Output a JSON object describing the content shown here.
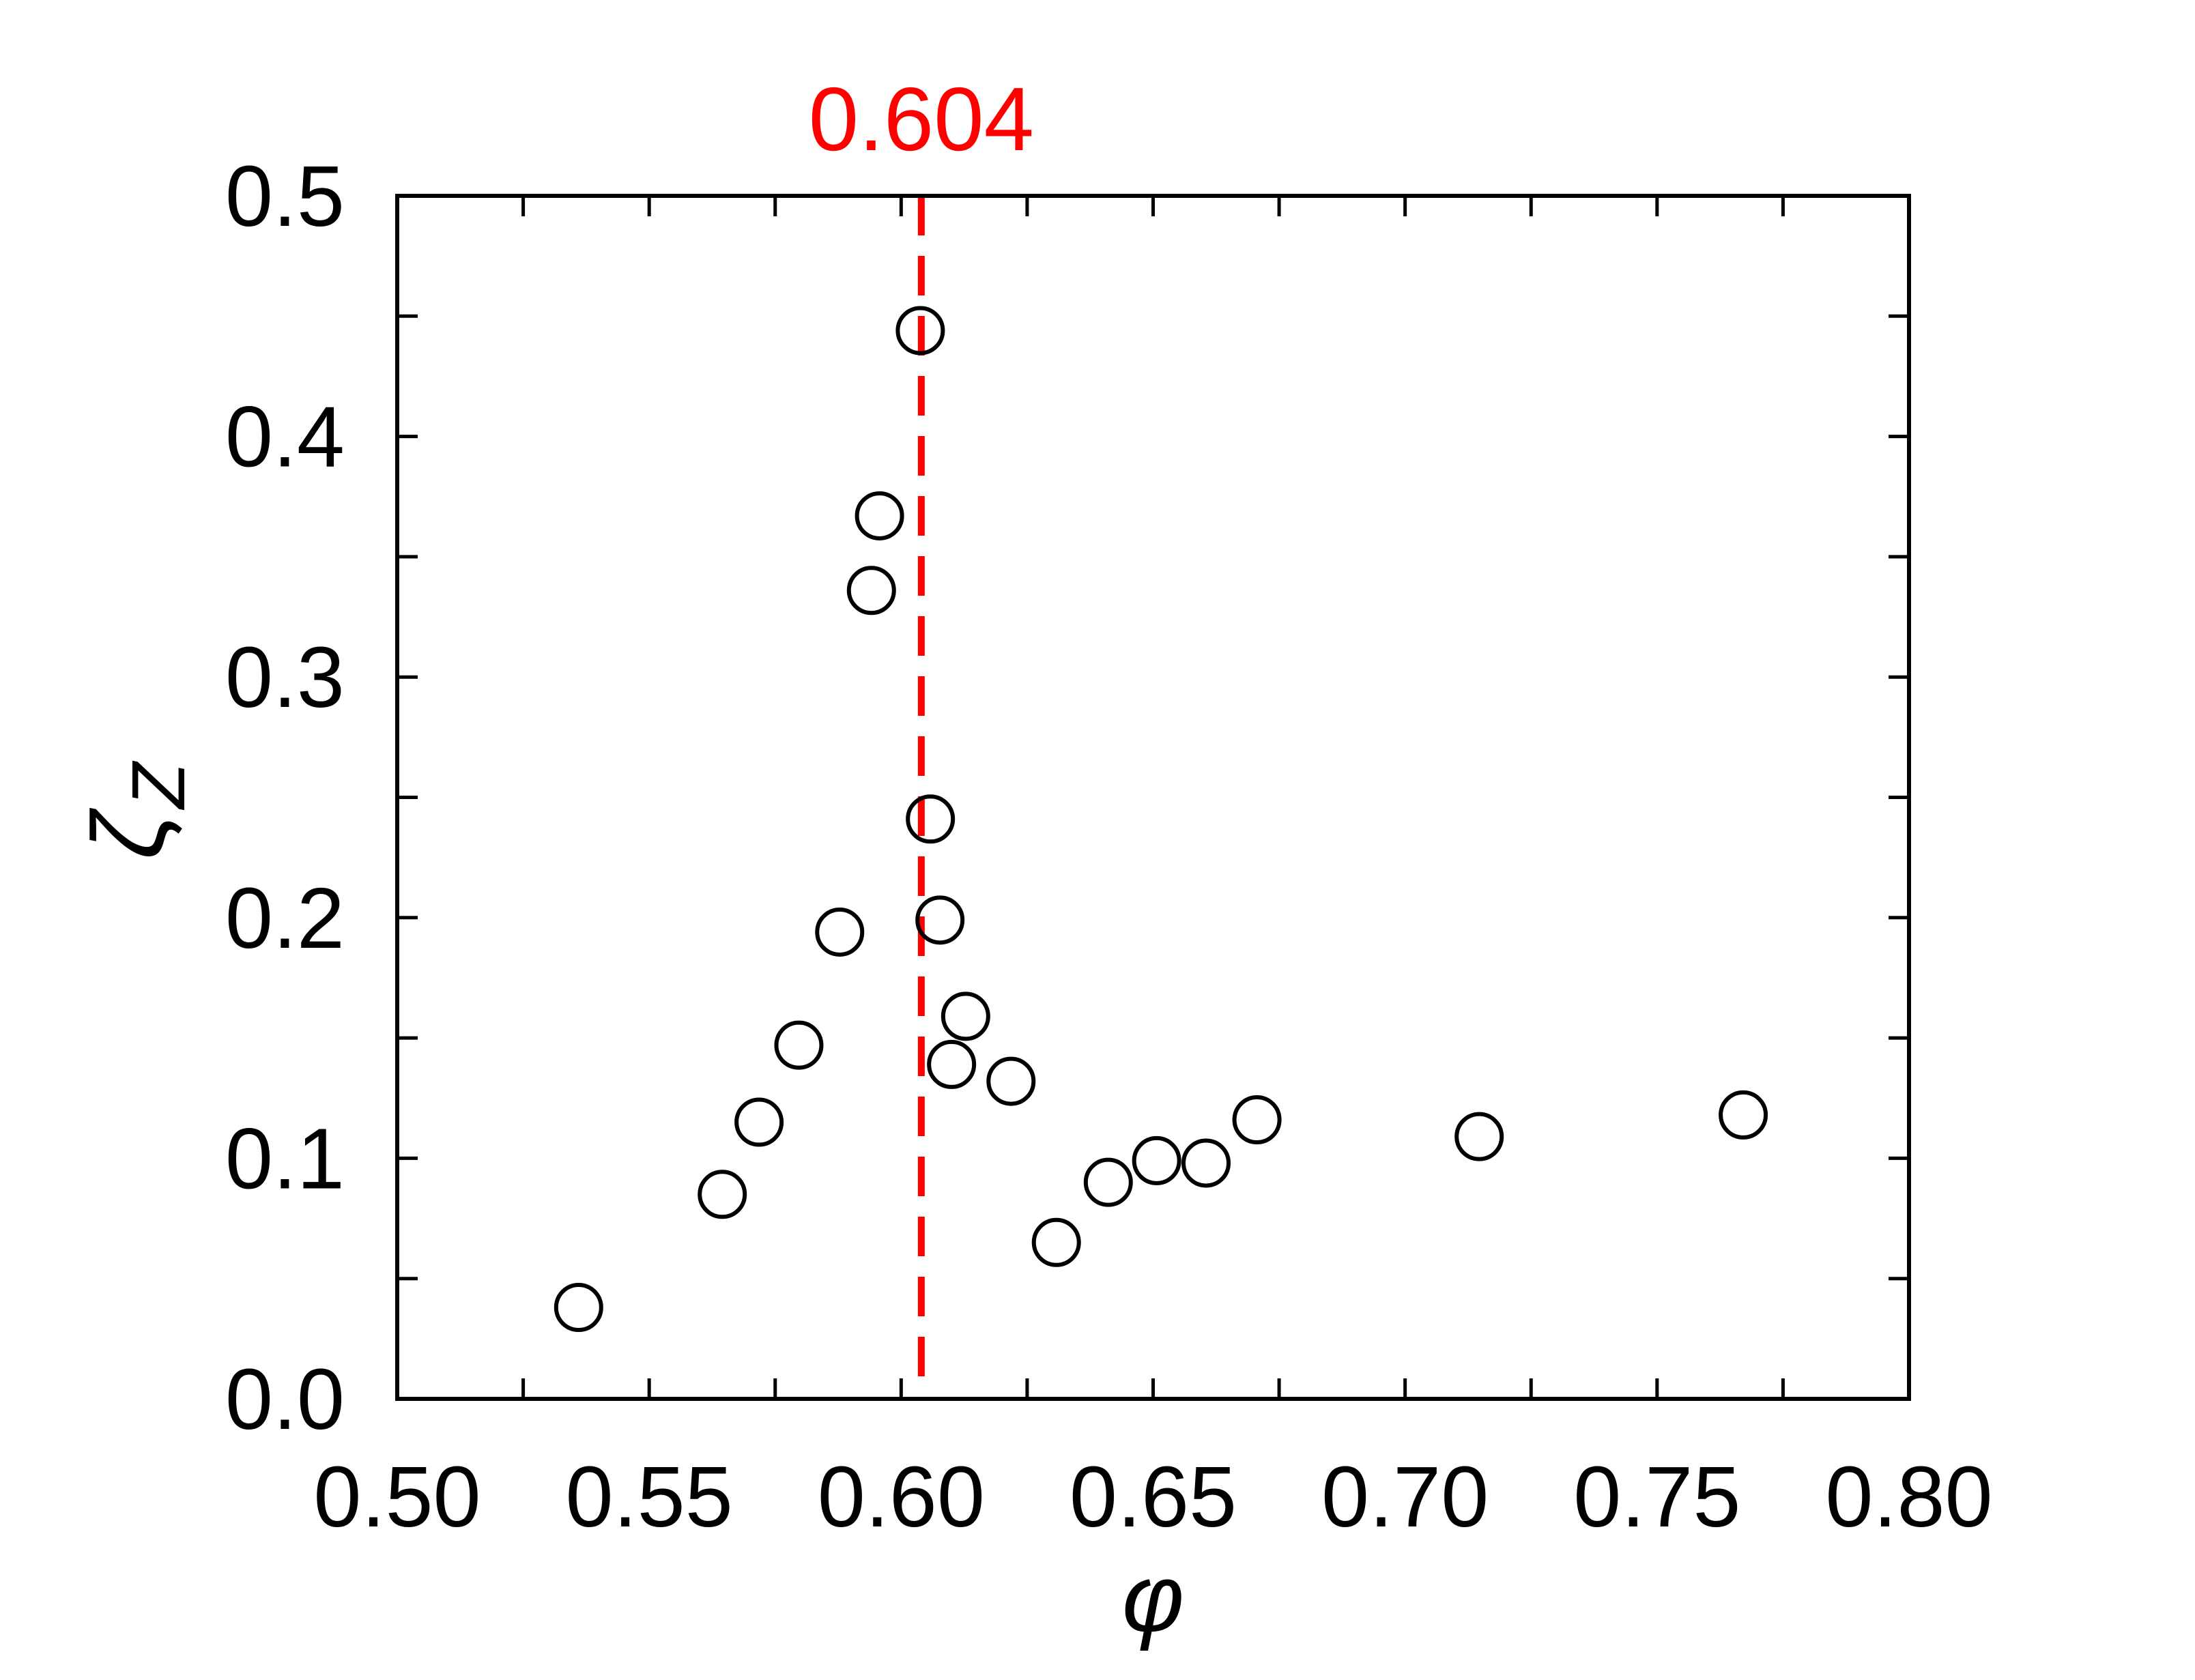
{
  "chart_data": {
    "type": "scatter",
    "xlabel": "φ",
    "ylabel": "ζ",
    "ylabel_subscript": "Z",
    "x": [
      0.536,
      0.5645,
      0.5718,
      0.5797,
      0.5878,
      0.5941,
      0.5957,
      0.6038,
      0.6058,
      0.6077,
      0.61,
      0.6128,
      0.6218,
      0.6308,
      0.6411,
      0.6507,
      0.6605,
      0.6706,
      0.7147,
      0.7671
    ],
    "values": [
      0.038,
      0.085,
      0.115,
      0.147,
      0.194,
      0.336,
      0.367,
      0.444,
      0.241,
      0.199,
      0.139,
      0.159,
      0.132,
      0.065,
      0.09,
      0.099,
      0.098,
      0.116,
      0.109,
      0.118
    ],
    "color": "#000000",
    "xlim": [
      0.5,
      0.8
    ],
    "xticks": [
      {
        "value": 0.5,
        "label": "0.50"
      },
      {
        "value": 0.55,
        "label": "0.55"
      },
      {
        "value": 0.6,
        "label": "0.60"
      },
      {
        "value": 0.65,
        "label": "0.65"
      },
      {
        "value": 0.7,
        "label": "0.70"
      },
      {
        "value": 0.75,
        "label": "0.75"
      },
      {
        "value": 0.8,
        "label": "0.80"
      }
    ],
    "xminorticks": [
      0.525,
      0.575,
      0.625,
      0.675,
      0.725,
      0.775
    ],
    "ylim": [
      0,
      0.5
    ],
    "yticks": [
      {
        "value": 0,
        "label": "0.0"
      },
      0.1,
      0.2,
      0.3,
      0.4,
      0.5
    ],
    "yminorticks": [
      0.05,
      0.15,
      0.25,
      0.35,
      0.45
    ],
    "vline": {
      "value": 0.604,
      "label": "0.604",
      "color": "#ff0000"
    }
  }
}
